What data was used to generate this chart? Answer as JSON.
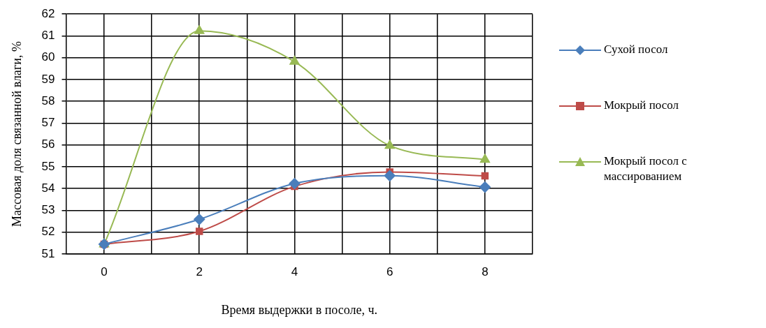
{
  "chart_data": {
    "type": "line",
    "xlabel": "Время выдержки в посоле, ч.",
    "ylabel": "Массовая доля связанной влаги, %",
    "x": [
      0,
      2,
      4,
      6,
      8
    ],
    "xlim": [
      -0.8,
      9
    ],
    "xticks": [
      0,
      {
        "value": 1,
        "label": null
      },
      2,
      {
        "value": 3,
        "label": null
      },
      4,
      {
        "value": 5,
        "label": null
      },
      6,
      {
        "value": 7,
        "label": null
      },
      8,
      {
        "value": 9,
        "label": null
      }
    ],
    "ylim": [
      51,
      62
    ],
    "yticks": [
      51,
      52,
      53,
      54,
      55,
      56,
      57,
      58,
      59,
      60,
      61,
      62
    ],
    "grid": true,
    "legend": "right",
    "line_style": "solid",
    "series": [
      {
        "name": "Сухой посол",
        "color": "#4a7ebb",
        "marker": "diamond",
        "values": [
          51.45,
          52.59,
          54.23,
          54.59,
          54.07
        ]
      },
      {
        "name": "Мокрый посол",
        "color": "#be4b48",
        "marker": "square",
        "values": [
          51.45,
          52.04,
          54.1,
          54.76,
          54.58
        ]
      },
      {
        "name": "Мокрый посол с массированием",
        "color": "#98b954",
        "marker": "triangle",
        "values": [
          51.45,
          61.23,
          59.82,
          55.97,
          55.33
        ]
      }
    ]
  }
}
